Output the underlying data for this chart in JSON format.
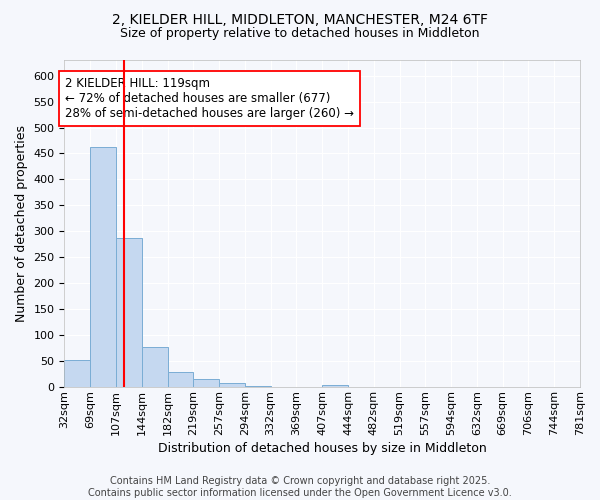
{
  "title_line1": "2, KIELDER HILL, MIDDLETON, MANCHESTER, M24 6TF",
  "title_line2": "Size of property relative to detached houses in Middleton",
  "xlabel": "Distribution of detached houses by size in Middleton",
  "ylabel": "Number of detached properties",
  "footnote": "Contains HM Land Registry data © Crown copyright and database right 2025.\nContains public sector information licensed under the Open Government Licence v3.0.",
  "bin_labels": [
    "32sqm",
    "69sqm",
    "107sqm",
    "144sqm",
    "182sqm",
    "219sqm",
    "257sqm",
    "294sqm",
    "332sqm",
    "369sqm",
    "407sqm",
    "444sqm",
    "482sqm",
    "519sqm",
    "557sqm",
    "594sqm",
    "632sqm",
    "669sqm",
    "706sqm",
    "744sqm",
    "781sqm"
  ],
  "bar_values": [
    52,
    462,
    288,
    77,
    30,
    16,
    8,
    3,
    0,
    0,
    5,
    0,
    0,
    0,
    0,
    0,
    0,
    0,
    0,
    0
  ],
  "bar_color": "#c5d8f0",
  "bar_edge_color": "#7aadd4",
  "vline_index": 2.32,
  "vline_color": "red",
  "annotation_text": "2 KIELDER HILL: 119sqm\n← 72% of detached houses are smaller (677)\n28% of semi-detached houses are larger (260) →",
  "annotation_box_color": "white",
  "annotation_box_edge_color": "red",
  "ylim": [
    0,
    630
  ],
  "yticks": [
    0,
    50,
    100,
    150,
    200,
    250,
    300,
    350,
    400,
    450,
    500,
    550,
    600
  ],
  "background_color": "#f5f7fc",
  "plot_bg_color": "#f5f7fc",
  "title_fontsize": 10,
  "subtitle_fontsize": 9,
  "axis_label_fontsize": 9,
  "tick_fontsize": 8,
  "annotation_fontsize": 8.5,
  "footnote_fontsize": 7
}
